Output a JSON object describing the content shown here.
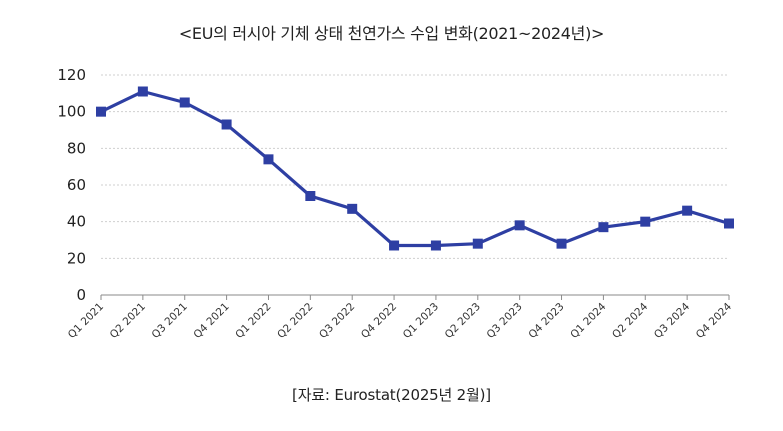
{
  "chart_data": {
    "type": "line",
    "title": "<EU의 러시아 기체 상태 천연가스 수입 변화(2021~2024년)>",
    "xlabel": "",
    "ylabel": "",
    "categories": [
      "Q1 2021",
      "Q2 2021",
      "Q3 2021",
      "Q4 2021",
      "Q1 2022",
      "Q2 2022",
      "Q3 2022",
      "Q4 2022",
      "Q1 2023",
      "Q2 2023",
      "Q3 2023",
      "Q4 2023",
      "Q1 2024",
      "Q2 2024",
      "Q3 2024",
      "Q4 2024"
    ],
    "series": [
      {
        "values": [
          100,
          111,
          105,
          93,
          74,
          54,
          47,
          27,
          27,
          28,
          38,
          28,
          37,
          40,
          46,
          39
        ]
      }
    ],
    "ylim": [
      0,
      120
    ],
    "yticks": [
      0,
      20,
      40,
      60,
      80,
      100,
      120
    ],
    "grid": true,
    "line_color": "#2e3fa3",
    "grid_color": "#cfcfcf"
  },
  "source": "[자료: Eurostat(2025년 2월)]"
}
